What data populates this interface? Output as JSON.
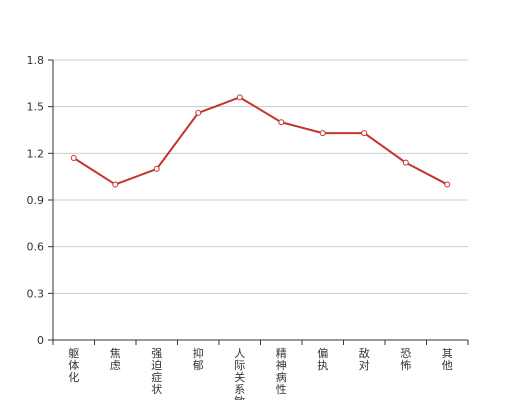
{
  "chart_data": {
    "type": "line",
    "title": "",
    "xlabel": "",
    "ylabel": "",
    "categories": [
      "躯体化",
      "焦虑",
      "强迫症状",
      "抑郁",
      "人际关系敏感",
      "精神病性",
      "偏执",
      "敌对",
      "恐怖",
      "其他"
    ],
    "series": [
      {
        "values": [
          1.17,
          1.0,
          1.1,
          1.46,
          1.56,
          1.4,
          1.33,
          1.33,
          1.14,
          1.0
        ]
      }
    ],
    "y_ticks": [
      "0",
      "0.3",
      "0.6",
      "0.9",
      "1.2",
      "1.5",
      "1.8"
    ],
    "ylim": [
      0,
      1.8
    ],
    "grid": true,
    "line_color": "#c23531",
    "grid_color": "#cccccc",
    "axis_color": "#333333"
  }
}
